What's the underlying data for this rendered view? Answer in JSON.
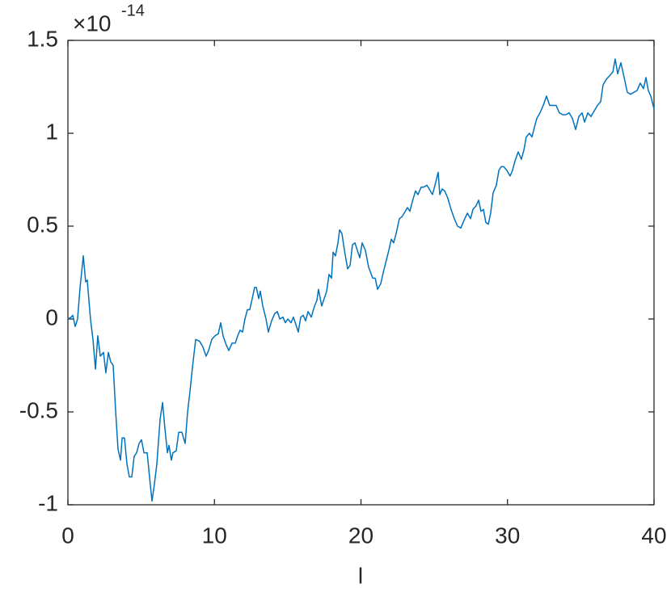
{
  "chart_data": {
    "type": "line",
    "xlabel": "l",
    "y_multiplier": {
      "base": "×10",
      "exponent": "-14"
    },
    "color": "#0072bd",
    "xlim": [
      0,
      40
    ],
    "xticks": [
      0,
      10,
      20,
      30,
      40
    ],
    "ylim": [
      -1,
      1.5
    ],
    "yticks": [
      -1,
      -0.5,
      0,
      0.5,
      1,
      1.5
    ],
    "box": true,
    "x": [
      0,
      0.22,
      0.33,
      0.5,
      0.66,
      0.83,
      1.05,
      1.21,
      1.32,
      1.54,
      1.71,
      1.88,
      2.04,
      2.21,
      2.43,
      2.59,
      2.76,
      2.92,
      3.09,
      3.26,
      3.42,
      3.59,
      3.7,
      3.86,
      4.03,
      4.19,
      4.36,
      4.52,
      4.69,
      4.86,
      5.02,
      5.19,
      5.41,
      5.57,
      5.74,
      5.9,
      6.07,
      6.29,
      6.46,
      6.62,
      6.79,
      6.9,
      7.06,
      7.17,
      7.39,
      7.56,
      7.78,
      8,
      8.17,
      8.33,
      8.5,
      8.72,
      8.99,
      9.21,
      9.43,
      9.6,
      9.82,
      10.04,
      10.26,
      10.43,
      10.59,
      10.81,
      10.98,
      11.2,
      11.42,
      11.59,
      11.75,
      11.92,
      12.08,
      12.25,
      12.41,
      12.58,
      12.74,
      12.86,
      13.02,
      13.13,
      13.3,
      13.52,
      13.68,
      13.9,
      14.12,
      14.29,
      14.46,
      14.68,
      14.84,
      15.01,
      15.23,
      15.39,
      15.56,
      15.72,
      15.89,
      16.06,
      16.22,
      16.39,
      16.61,
      16.83,
      16.99,
      17.1,
      17.32,
      17.49,
      17.66,
      17.82,
      17.99,
      18.1,
      18.26,
      18.43,
      18.54,
      18.7,
      18.87,
      19.09,
      19.26,
      19.42,
      19.59,
      19.75,
      19.92,
      20.08,
      20.3,
      20.52,
      20.8,
      20.97,
      21.13,
      21.35,
      21.52,
      21.68,
      21.9,
      22.07,
      22.23,
      22.4,
      22.62,
      22.79,
      22.95,
      23.17,
      23.34,
      23.5,
      23.72,
      23.89,
      24.11,
      24.28,
      24.5,
      24.66,
      24.88,
      25.05,
      25.27,
      25.38,
      25.54,
      25.71,
      25.93,
      26.15,
      26.37,
      26.59,
      26.81,
      27.03,
      27.26,
      27.48,
      27.64,
      27.86,
      28.03,
      28.19,
      28.36,
      28.52,
      28.69,
      28.85,
      29.02,
      29.24,
      29.41,
      29.57,
      29.74,
      29.96,
      30.18,
      30.34,
      30.51,
      30.73,
      30.95,
      31.12,
      31.28,
      31.5,
      31.67,
      31.83,
      32,
      32.22,
      32.44,
      32.66,
      32.88,
      33.1,
      33.32,
      33.54,
      33.77,
      33.99,
      34.21,
      34.43,
      34.65,
      34.87,
      35.09,
      35.26,
      35.48,
      35.7,
      35.92,
      36.14,
      36.36,
      36.52,
      36.74,
      36.97,
      37.19,
      37.35,
      37.52,
      37.74,
      37.96,
      38.18,
      38.4,
      38.62,
      38.84,
      39.06,
      39.28,
      39.45,
      39.61,
      39.78,
      40
    ],
    "values": [
      0,
      0.01,
      0.02,
      -0.04,
      0,
      0.17,
      0.34,
      0.2,
      0.21,
      0,
      -0.11,
      -0.27,
      -0.09,
      -0.2,
      -0.18,
      -0.29,
      -0.18,
      -0.23,
      -0.25,
      -0.5,
      -0.7,
      -0.76,
      -0.64,
      -0.64,
      -0.78,
      -0.85,
      -0.85,
      -0.74,
      -0.72,
      -0.67,
      -0.65,
      -0.72,
      -0.72,
      -0.85,
      -0.98,
      -0.89,
      -0.78,
      -0.54,
      -0.45,
      -0.59,
      -0.72,
      -0.68,
      -0.76,
      -0.72,
      -0.71,
      -0.61,
      -0.61,
      -0.67,
      -0.5,
      -0.39,
      -0.26,
      -0.11,
      -0.12,
      -0.15,
      -0.2,
      -0.17,
      -0.11,
      -0.09,
      -0.08,
      -0.02,
      -0.09,
      -0.14,
      -0.17,
      -0.13,
      -0.13,
      -0.09,
      -0.06,
      -0.07,
      0,
      0.05,
      0.05,
      0.11,
      0.17,
      0.17,
      0.11,
      0.15,
      0.07,
      0,
      -0.07,
      -0.01,
      0.03,
      0.04,
      0,
      0.01,
      -0.02,
      0,
      -0.02,
      0.01,
      -0.03,
      -0.07,
      0.01,
      0.02,
      -0.01,
      0.04,
      0.01,
      0.07,
      0.1,
      0.16,
      0.07,
      0.11,
      0.15,
      0.24,
      0.22,
      0.36,
      0.34,
      0.41,
      0.48,
      0.46,
      0.37,
      0.27,
      0.29,
      0.4,
      0.41,
      0.37,
      0.33,
      0.41,
      0.37,
      0.28,
      0.22,
      0.22,
      0.16,
      0.19,
      0.25,
      0.3,
      0.37,
      0.43,
      0.41,
      0.46,
      0.54,
      0.55,
      0.57,
      0.6,
      0.58,
      0.63,
      0.69,
      0.67,
      0.71,
      0.71,
      0.72,
      0.7,
      0.67,
      0.72,
      0.79,
      0.67,
      0.7,
      0.69,
      0.65,
      0.59,
      0.54,
      0.5,
      0.49,
      0.53,
      0.57,
      0.54,
      0.59,
      0.61,
      0.64,
      0.58,
      0.59,
      0.52,
      0.51,
      0.57,
      0.68,
      0.72,
      0.8,
      0.82,
      0.82,
      0.8,
      0.77,
      0.8,
      0.85,
      0.9,
      0.86,
      0.91,
      0.98,
      1,
      0.98,
      1.03,
      1.08,
      1.11,
      1.15,
      1.2,
      1.15,
      1.15,
      1.15,
      1.11,
      1.1,
      1.1,
      1.11,
      1.08,
      1.02,
      1.09,
      1.11,
      1.06,
      1.11,
      1.09,
      1.12,
      1.15,
      1.17,
      1.26,
      1.29,
      1.31,
      1.33,
      1.4,
      1.32,
      1.38,
      1.3,
      1.22,
      1.21,
      1.22,
      1.23,
      1.27,
      1.24,
      1.3,
      1.23,
      1.2,
      1.13
    ]
  }
}
